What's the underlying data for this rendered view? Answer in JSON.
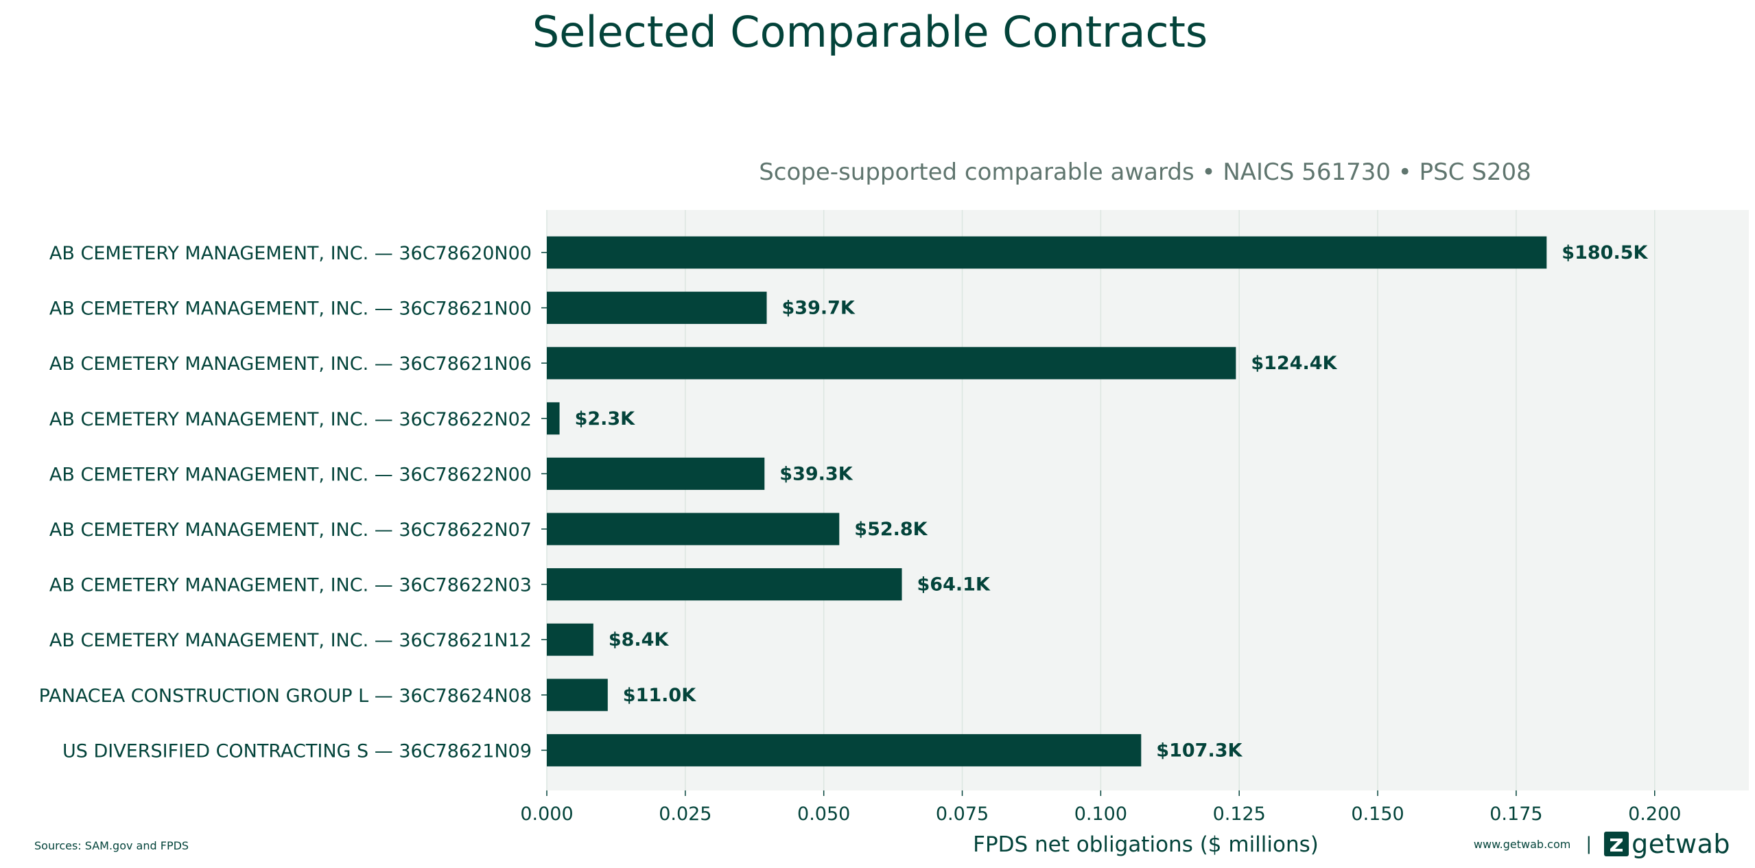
{
  "title": "Selected Comparable Contracts",
  "footer": {
    "sources": "Sources: SAM.gov and FPDS",
    "url": "www.getwab.com",
    "separator": "|",
    "brand_name": "getwab"
  },
  "colors": {
    "bar": "#03433a",
    "plot_background": "#f2f4f3",
    "grid": "#dce6e1",
    "text": "#03433a",
    "subtitle": "#5f756e"
  },
  "chart_data": {
    "type": "bar",
    "orientation": "horizontal",
    "title": "Selected Comparable Contracts",
    "subtitle": "Scope-supported comparable awards • NAICS 561730 • PSC S208",
    "xlabel": "FPDS net obligations ($ millions)",
    "ylabel": "",
    "xlim": [
      0,
      0.217
    ],
    "xticks": [
      0.0,
      0.025,
      0.05,
      0.075,
      0.1,
      0.125,
      0.15,
      0.175,
      0.2
    ],
    "xtick_labels": [
      "0.000",
      "0.025",
      "0.050",
      "0.075",
      "0.100",
      "0.125",
      "0.150",
      "0.175",
      "0.200"
    ],
    "grid": "vertical",
    "categories": [
      "AB CEMETERY MANAGEMENT, INC. — 36C78620N00",
      "AB CEMETERY MANAGEMENT, INC. — 36C78621N00",
      "AB CEMETERY MANAGEMENT, INC. — 36C78621N06",
      "AB CEMETERY MANAGEMENT, INC. — 36C78622N02",
      "AB CEMETERY MANAGEMENT, INC. — 36C78622N00",
      "AB CEMETERY MANAGEMENT, INC. — 36C78622N07",
      "AB CEMETERY MANAGEMENT, INC. — 36C78622N03",
      "AB CEMETERY MANAGEMENT, INC. — 36C78621N12",
      "PANACEA CONSTRUCTION GROUP L — 36C78624N08",
      "US DIVERSIFIED CONTRACTING S — 36C78621N09"
    ],
    "values": [
      0.1805,
      0.0397,
      0.1244,
      0.0023,
      0.0393,
      0.0528,
      0.0641,
      0.0084,
      0.011,
      0.1073
    ],
    "data_labels": [
      "$180.5K",
      "$39.7K",
      "$124.4K",
      "$2.3K",
      "$39.3K",
      "$52.8K",
      "$64.1K",
      "$8.4K",
      "$11.0K",
      "$107.3K"
    ]
  }
}
